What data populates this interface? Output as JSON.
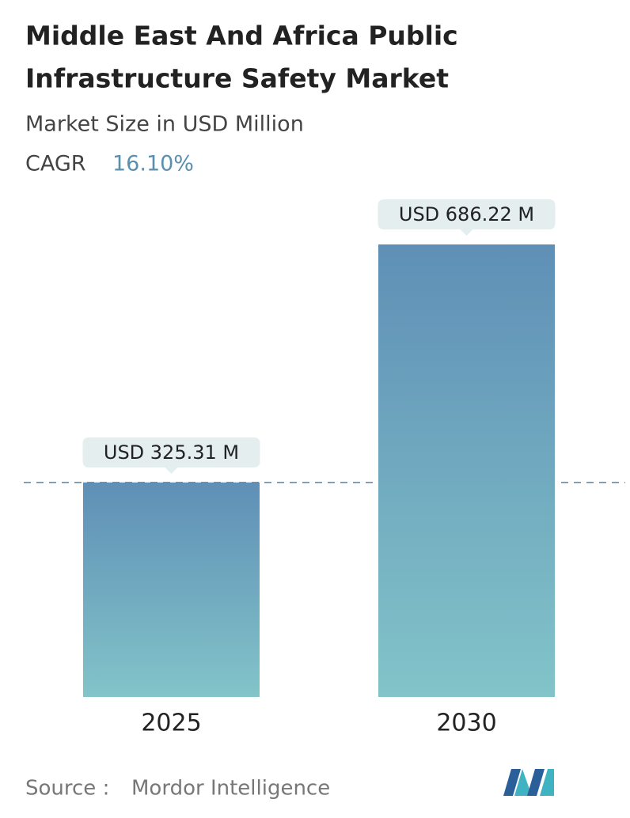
{
  "chart_data": {
    "type": "bar",
    "title": [
      "Middle East And Africa Public",
      "Infrastructure Safety Market"
    ],
    "subtitle": "Market Size in USD Million",
    "cagr": {
      "label": "CAGR",
      "value": "16.10%"
    },
    "categories": [
      "2025",
      "2030"
    ],
    "values": [
      325.31,
      686.22
    ],
    "value_labels": [
      "USD 325.31 M",
      "USD 686.22 M"
    ],
    "color": [
      "#5f8fb6",
      "#82c4c9"
    ],
    "source": {
      "label": "Source :",
      "value": "Mordor Intelligence"
    }
  }
}
